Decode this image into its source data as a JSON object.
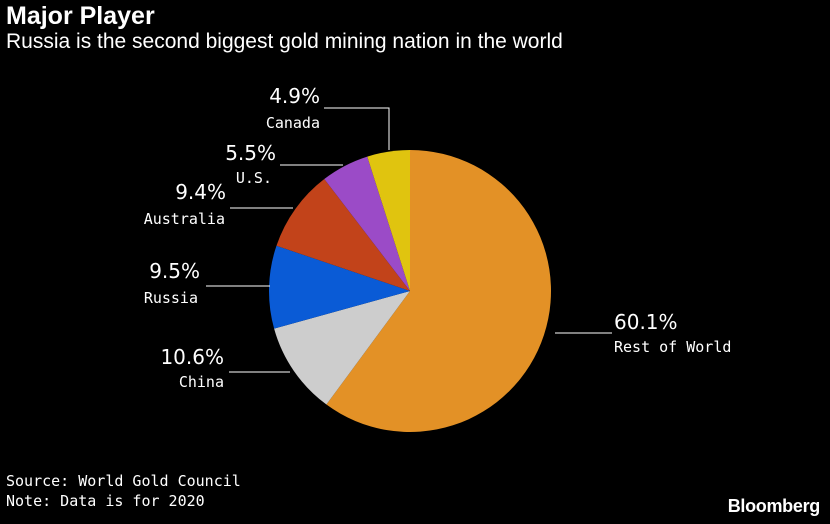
{
  "header": {
    "title": "Major Player",
    "subtitle": "Russia is the second biggest gold mining nation in the world"
  },
  "footer": {
    "source": "Source: World Gold Council",
    "note": "Note: Data is for 2020",
    "brand": "Bloomberg"
  },
  "chart_data": {
    "type": "pie",
    "title": "Major Player",
    "subtitle": "Russia is the second biggest gold mining nation in the world",
    "slices": [
      {
        "label": "Rest of World",
        "value": 60.1,
        "value_label": "60.1%",
        "color": "#E39126"
      },
      {
        "label": "China",
        "value": 10.6,
        "value_label": "10.6%",
        "color": "#CDCDCD"
      },
      {
        "label": "Russia",
        "value": 9.5,
        "value_label": "9.5%",
        "color": "#0A5BD6"
      },
      {
        "label": "Australia",
        "value": 9.4,
        "value_label": "9.4%",
        "color": "#C2431A"
      },
      {
        "label": "U.S.",
        "value": 5.5,
        "value_label": "5.5%",
        "color": "#9B4BC7"
      },
      {
        "label": "Canada",
        "value": 4.9,
        "value_label": "4.9%",
        "color": "#E0C40F"
      }
    ]
  }
}
